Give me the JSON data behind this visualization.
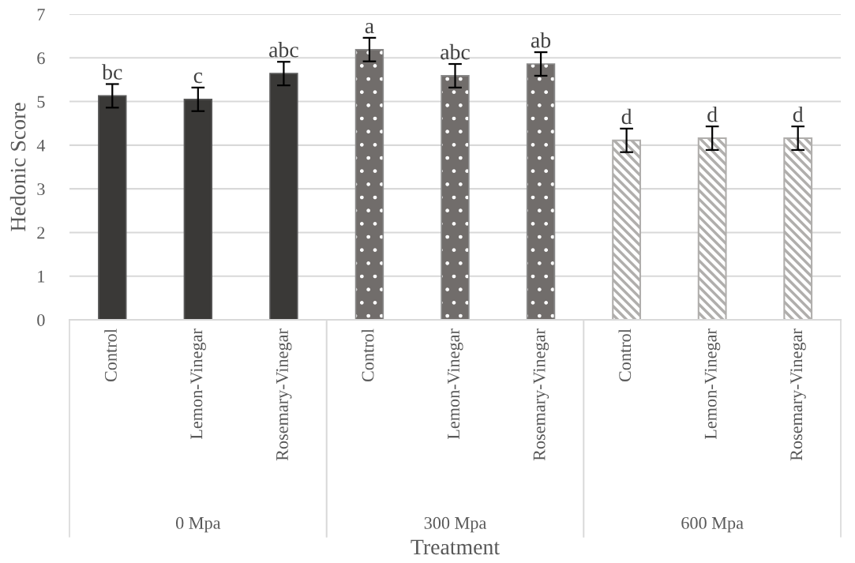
{
  "chart_data": {
    "type": "bar",
    "xlabel": "Treatment",
    "ylabel": "Hedonic Score",
    "categories": [
      "Control",
      "Lemon-Vinegar",
      "Rosemary-Vinegar",
      "Control",
      "Lemon-Vinegar",
      "Rosemary-Vinegar",
      "Control",
      "Lemon-Vinegar",
      "Rosemary-Vinegar"
    ],
    "series": [
      {
        "color": "#3a3937",
        "values": [
          5.13,
          5.05,
          5.64,
          null,
          null,
          null,
          null,
          null,
          null
        ],
        "errors": [
          0.27,
          0.27,
          0.27,
          null,
          null,
          null,
          null,
          null,
          null
        ],
        "value_labels": [
          "bc",
          "c",
          "abc",
          null,
          null,
          null,
          null,
          null,
          null
        ]
      },
      {
        "color": "#716d6b",
        "values": [
          null,
          null,
          null,
          6.19,
          5.59,
          5.86,
          null,
          null,
          null
        ],
        "errors": [
          null,
          null,
          null,
          0.27,
          0.27,
          0.27,
          null,
          null,
          null
        ],
        "value_labels": [
          null,
          null,
          null,
          "a",
          "abc",
          "ab",
          null,
          null,
          null
        ]
      },
      {
        "color": "#b0aeac",
        "values": [
          null,
          null,
          null,
          null,
          null,
          null,
          4.11,
          4.16,
          4.16
        ],
        "errors": [
          null,
          null,
          null,
          null,
          null,
          null,
          0.27,
          0.27,
          0.27
        ],
        "value_labels": [
          null,
          null,
          null,
          null,
          null,
          null,
          "d",
          "d",
          "d"
        ]
      }
    ],
    "ylim": [
      0,
      7
    ],
    "yticks": [
      0,
      1,
      2,
      3,
      4,
      5,
      6,
      7
    ],
    "grid": "y",
    "annotations": [
      "0 Mpa",
      "300 Mpa",
      "600 Mpa"
    ]
  }
}
